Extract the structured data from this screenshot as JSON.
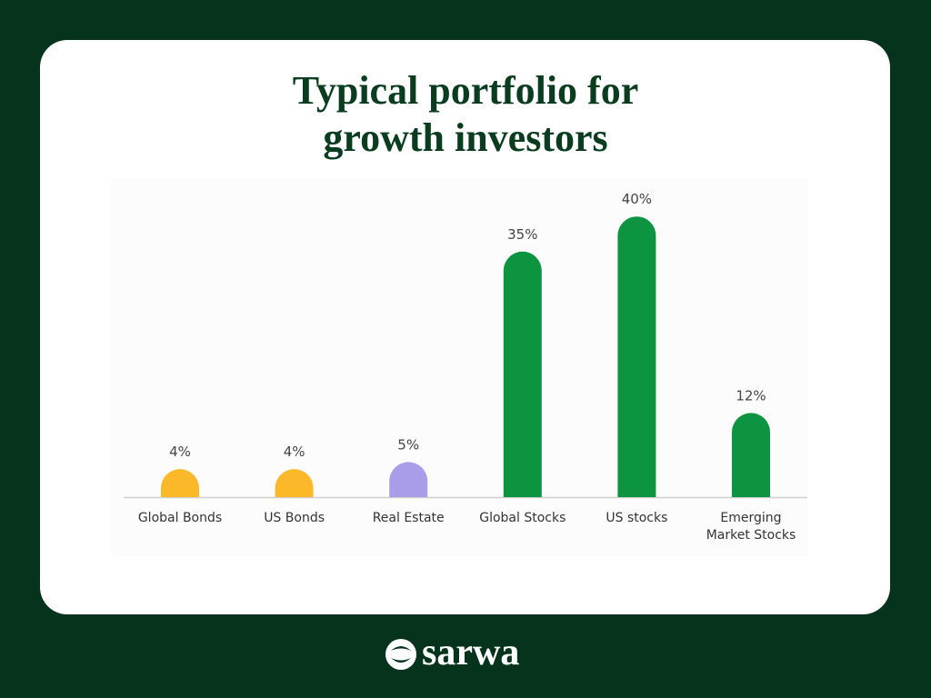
{
  "chart_data": {
    "type": "bar",
    "title": "Typical portfolio for growth investors",
    "categories": [
      "Global Bonds",
      "US Bonds",
      "Real Estate",
      "Global Stocks",
      "US stocks",
      "Emerging Market Stocks"
    ],
    "values": [
      4,
      4,
      5,
      35,
      40,
      12
    ],
    "value_labels": [
      "4%",
      "4%",
      "5%",
      "35%",
      "40%",
      "12%"
    ],
    "colors": [
      "#fbb829",
      "#fbb829",
      "#a99ce8",
      "#0c9440",
      "#0c9440",
      "#0c9440"
    ]
  },
  "footer": {
    "brand": "sarwa"
  }
}
